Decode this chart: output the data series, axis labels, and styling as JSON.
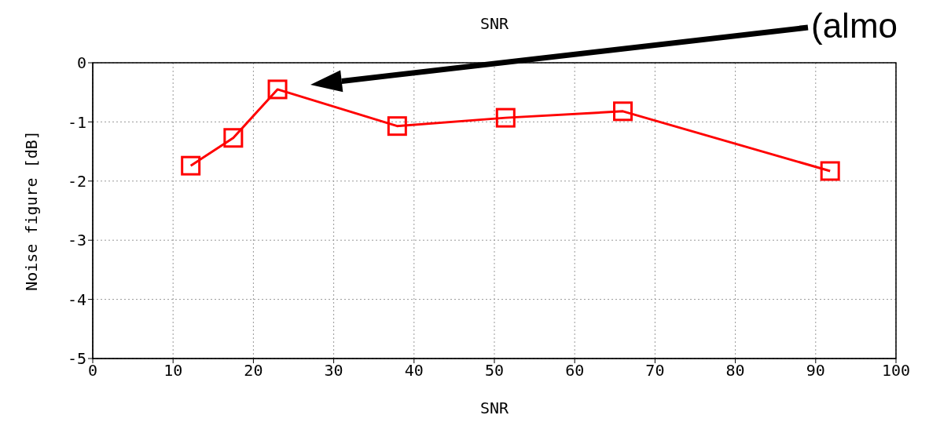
{
  "chart_data": {
    "type": "line",
    "title": "SNR",
    "xlabel": "SNR",
    "ylabel": "Noise figure [dB]",
    "x": [
      12.2,
      17.5,
      23,
      37.9,
      51.4,
      66,
      91.8
    ],
    "series": [
      {
        "color": "#ff0000",
        "values": [
          -1.74,
          -1.27,
          -0.45,
          -1.07,
          -0.93,
          -0.82,
          -1.83
        ]
      }
    ],
    "xlim": [
      0,
      100
    ],
    "xticks": [
      0,
      10,
      20,
      30,
      40,
      50,
      60,
      70,
      80,
      90,
      100
    ],
    "ylim": [
      -5,
      0
    ],
    "yticks": [
      -5,
      -4,
      -3,
      -2,
      -1,
      0
    ],
    "grid": true,
    "marker": "square",
    "line_style": "solid",
    "annotations": [
      "(almo"
    ]
  }
}
